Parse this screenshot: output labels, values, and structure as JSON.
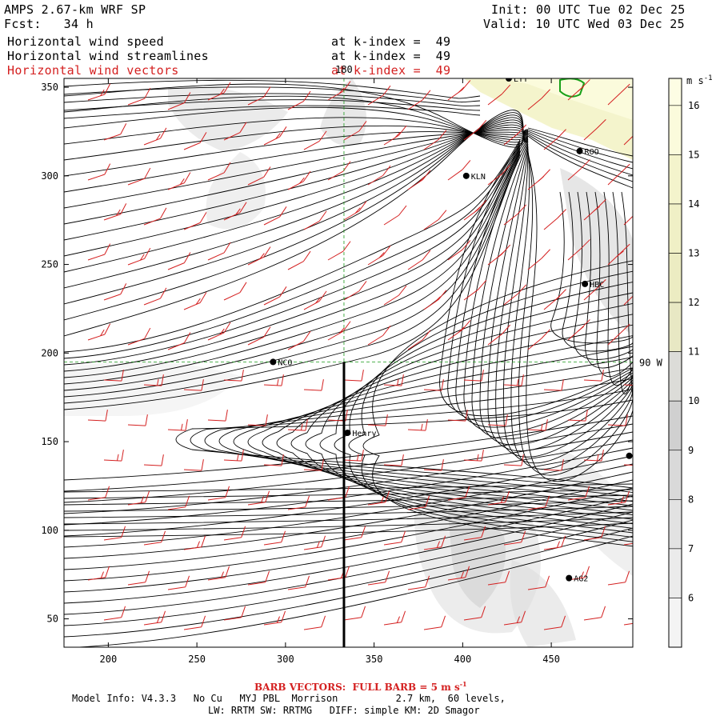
{
  "header": {
    "model": "AMPS 2.67-km WRF SP",
    "fcst": "Fcst:   34 h",
    "init": "Init: 00 UTC Tue 02 Dec 25",
    "valid": "Valid: 10 UTC Wed 03 Dec 25"
  },
  "fields": [
    {
      "name": "Horizontal wind speed",
      "level": "at k-index =  49",
      "color": "#000000"
    },
    {
      "name": "Horizontal wind streamlines",
      "level": "at k-index =  49",
      "color": "#000000"
    },
    {
      "name": "Horizontal wind vectors",
      "level": "at k-index =  49",
      "color": "#d42020"
    }
  ],
  "map": {
    "x_ticks": [
      200,
      250,
      300,
      350,
      400,
      450
    ],
    "y_ticks": [
      50,
      100,
      150,
      200,
      250,
      300,
      350
    ],
    "x_range": [
      175,
      496
    ],
    "y_range": [
      34,
      355
    ],
    "meridian_labels": {
      "lon_180": "180",
      "lon_90w": "90 W"
    },
    "meridian_180_x": 333,
    "parallel_y": 195,
    "cross_section": {
      "x": 333,
      "y_from": 34,
      "y_to": 195
    },
    "stations": [
      {
        "id": "LYT",
        "label": "LYT",
        "x": 426,
        "y": 355
      },
      {
        "id": "KLN",
        "label": "KLN",
        "x": 402,
        "y": 300
      },
      {
        "id": "ROO",
        "label": "ROO",
        "x": 466,
        "y": 314
      },
      {
        "id": "HBC",
        "label": "HBC",
        "x": 469,
        "y": 239
      },
      {
        "id": "NCO",
        "label": "NCO",
        "x": 293,
        "y": 195
      },
      {
        "id": "Henry",
        "label": "Henry",
        "x": 335,
        "y": 155
      },
      {
        "id": "unnamed",
        "label": "",
        "x": 494,
        "y": 142
      },
      {
        "id": "AG2",
        "label": "AG2",
        "x": 460,
        "y": 73
      }
    ]
  },
  "colorbar": {
    "unit": "m s-1",
    "labels": [
      "16",
      "15",
      "14",
      "13",
      "12",
      "11",
      "10",
      "9",
      "8",
      "7",
      "6"
    ],
    "colors": [
      "#fbfbdc",
      "#f4f4cc",
      "#f0f0c6",
      "#ececc2",
      "#e8e8c4",
      "#dcdcd8",
      "#d0d0d0",
      "#d9d9d9",
      "#e2e2e2",
      "#ebebeb",
      "#f4f4f4"
    ]
  },
  "footer": {
    "barb_note": "BARB VECTORS:  FULL BARB = 5 m s",
    "barb_exp": "-1",
    "model_info": "Model Info: V4.3.3   No Cu   MYJ PBL  Morrison          2.7 km,  60 levels,",
    "physics": "LW: RRTM SW: RRTMG   DIFF: simple KM: 2D Smagor"
  }
}
